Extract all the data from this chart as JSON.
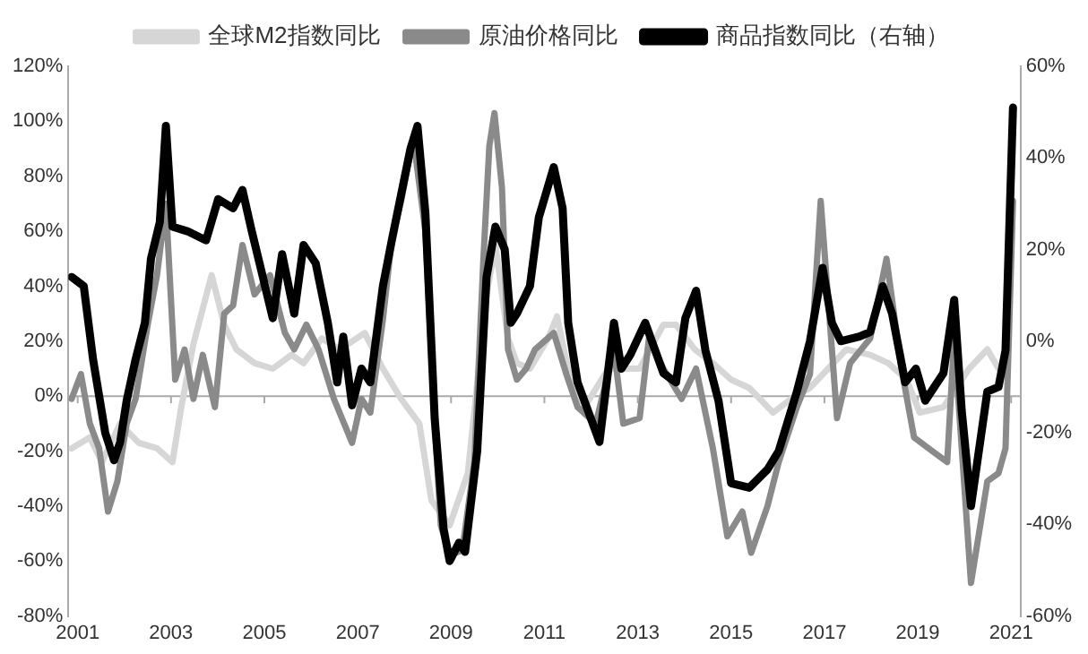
{
  "chart_data": {
    "type": "line",
    "legend": "top",
    "grid": false,
    "marker": "none",
    "line_style": "solid",
    "xlim": [
      2000.8,
      2021.2
    ],
    "ref_lines": [
      {
        "axis": "y",
        "value": 0,
        "color": "#aaaaaa"
      }
    ],
    "xticks": [
      2001,
      2003,
      2005,
      2007,
      2009,
      2011,
      2013,
      2015,
      2017,
      2019,
      2021
    ],
    "ylim": [
      -80,
      120
    ],
    "yticks": [
      {
        "value": -80,
        "label": "-80%"
      },
      {
        "value": -60,
        "label": "-60%"
      },
      {
        "value": -40,
        "label": "-40%"
      },
      {
        "value": -20,
        "label": "-20%"
      },
      {
        "value": 0,
        "label": "0%"
      },
      {
        "value": 20,
        "label": "20%"
      },
      {
        "value": 40,
        "label": "40%"
      },
      {
        "value": 60,
        "label": "60%"
      },
      {
        "value": 80,
        "label": "80%"
      },
      {
        "value": 100,
        "label": "100%"
      },
      {
        "value": 120,
        "label": "120%"
      }
    ],
    "y2lim": [
      -60,
      60
    ],
    "y2ticks": [
      {
        "value": -60,
        "label": "-60%"
      },
      {
        "value": -40,
        "label": "-40%"
      },
      {
        "value": -20,
        "label": "-20%"
      },
      {
        "value": 0,
        "label": "0%"
      },
      {
        "value": 20,
        "label": "20%"
      },
      {
        "value": 40,
        "label": "40%"
      },
      {
        "value": 60,
        "label": "60%"
      }
    ],
    "series": [
      {
        "name": "全球M2指数同比",
        "color": "#d6d6d6",
        "x": [
          2000.87,
          2001.26,
          2001.52,
          2001.91,
          2002.31,
          2002.7,
          2003.03,
          2003.22,
          2003.48,
          2003.87,
          2004.14,
          2004.4,
          2004.79,
          2005.18,
          2005.58,
          2005.84,
          2006.23,
          2006.62,
          2007.15,
          2007.54,
          2007.93,
          2008.32,
          2008.58,
          2008.97,
          2009.36,
          2009.76,
          2009.95,
          2010.22,
          2010.41,
          2010.69,
          2011.08,
          2011.27,
          2011.59,
          2011.86,
          2012.37,
          2013.04,
          2013.55,
          2013.82,
          2014.22,
          2014.61,
          2015.0,
          2015.39,
          2015.9,
          2016.29,
          2016.69,
          2017.08,
          2017.47,
          2017.98,
          2018.37,
          2018.76,
          2019.04,
          2019.55,
          2020.1,
          2020.49,
          2020.73
        ],
        "values": [
          -19,
          -15,
          -24,
          -10,
          -17,
          -19,
          -24,
          -4,
          19,
          44,
          26,
          17,
          12,
          10,
          15,
          12,
          21,
          17,
          23,
          10,
          -1,
          -10,
          -38,
          -47,
          -28,
          37,
          55,
          21,
          12,
          10,
          21,
          29,
          3,
          -4,
          10,
          10,
          26,
          26,
          17,
          12,
          6,
          3,
          -6,
          -1,
          3,
          10,
          17,
          15,
          12,
          6,
          -6,
          -4,
          10,
          17,
          10
        ]
      },
      {
        "name": "原油价格同比",
        "color": "#8a8a8a",
        "x": [
          2000.87,
          2001.07,
          2001.26,
          2001.46,
          2001.65,
          2001.85,
          2002.05,
          2002.24,
          2002.5,
          2002.7,
          2002.89,
          2003.09,
          2003.29,
          2003.48,
          2003.68,
          2003.94,
          2004.14,
          2004.33,
          2004.53,
          2004.79,
          2005.12,
          2005.44,
          2005.64,
          2005.9,
          2006.16,
          2006.49,
          2006.88,
          2007.08,
          2007.27,
          2007.54,
          2007.73,
          2007.93,
          2008.19,
          2008.45,
          2008.65,
          2008.78,
          2008.97,
          2009.24,
          2009.5,
          2009.69,
          2009.82,
          2009.93,
          2010.09,
          2010.22,
          2010.41,
          2010.61,
          2010.8,
          2011.2,
          2011.47,
          2011.71,
          2012.1,
          2012.49,
          2012.69,
          2013.04,
          2013.24,
          2013.55,
          2013.94,
          2014.25,
          2014.61,
          2014.92,
          2015.24,
          2015.43,
          2015.78,
          2016.02,
          2016.41,
          2016.69,
          2016.92,
          2017.16,
          2017.27,
          2017.55,
          2017.98,
          2018.33,
          2018.65,
          2018.92,
          2019.31,
          2019.63,
          2019.78,
          2020.14,
          2020.49,
          2020.73,
          2020.88,
          2021.04
        ],
        "values": [
          -1,
          8,
          -10,
          -19,
          -42,
          -31,
          -10,
          -1,
          26,
          44,
          70,
          6,
          17,
          -1,
          15,
          -4,
          30,
          33,
          55,
          37,
          44,
          23,
          17,
          26,
          17,
          -1,
          -17,
          -1,
          -6,
          28,
          57,
          71,
          94,
          60,
          -10,
          -47,
          -58,
          -56,
          -24,
          49,
          91,
          103,
          76,
          17,
          6,
          10,
          17,
          23,
          8,
          -4,
          -10,
          17,
          -10,
          -8,
          21,
          10,
          -1,
          10,
          -19,
          -51,
          -42,
          -57,
          -40,
          -24,
          -4,
          8,
          71,
          17,
          -8,
          12,
          21,
          50,
          10,
          -15,
          -20,
          -24,
          21,
          -68,
          -31,
          -28,
          -19,
          71
        ]
      },
      {
        "name": "商品指数同比（右轴）",
        "color": "#000000",
        "axis": "y2",
        "x": [
          2000.87,
          2001.13,
          2001.33,
          2001.59,
          2001.78,
          2001.91,
          2002.05,
          2002.24,
          2002.44,
          2002.57,
          2002.76,
          2002.89,
          2003.03,
          2003.35,
          2003.75,
          2004.01,
          2004.33,
          2004.53,
          2004.73,
          2004.92,
          2005.18,
          2005.38,
          2005.64,
          2005.84,
          2006.1,
          2006.36,
          2006.56,
          2006.69,
          2006.88,
          2007.08,
          2007.27,
          2007.54,
          2007.73,
          2007.93,
          2008.13,
          2008.28,
          2008.45,
          2008.65,
          2008.84,
          2008.97,
          2009.17,
          2009.3,
          2009.56,
          2009.76,
          2009.95,
          2010.15,
          2010.28,
          2010.41,
          2010.69,
          2010.88,
          2011.2,
          2011.39,
          2011.51,
          2011.71,
          2012.18,
          2012.49,
          2012.65,
          2012.84,
          2013.16,
          2013.55,
          2013.82,
          2014.02,
          2014.25,
          2014.45,
          2014.73,
          2015.0,
          2015.39,
          2015.78,
          2016.02,
          2016.41,
          2016.69,
          2016.96,
          2017.16,
          2017.35,
          2017.75,
          2017.98,
          2018.25,
          2018.45,
          2018.73,
          2018.96,
          2019.16,
          2019.55,
          2019.78,
          2019.94,
          2020.14,
          2020.49,
          2020.73,
          2020.88,
          2021.04
        ],
        "values": [
          14,
          12,
          -4,
          -20,
          -26,
          -22,
          -13,
          -4,
          4,
          18,
          26,
          47,
          25,
          24,
          22,
          31,
          29,
          33,
          24,
          16,
          5,
          19,
          6,
          21,
          17,
          4,
          -9,
          1,
          -14,
          -6,
          -9,
          12,
          22,
          32,
          42,
          47,
          28,
          -17,
          -41,
          -48,
          -44,
          -46,
          -24,
          14,
          25,
          20,
          4,
          6,
          12,
          27,
          38,
          29,
          4,
          -9,
          -22,
          4,
          -6,
          -3,
          4,
          -7,
          -9,
          5,
          11,
          -2,
          -13,
          -31,
          -32,
          -28,
          -24,
          -11,
          0,
          16,
          4,
          0,
          1,
          2,
          12,
          6,
          -9,
          -6,
          -13,
          -7,
          9,
          -15,
          -36,
          -11,
          -10,
          -2,
          51
        ]
      }
    ]
  }
}
